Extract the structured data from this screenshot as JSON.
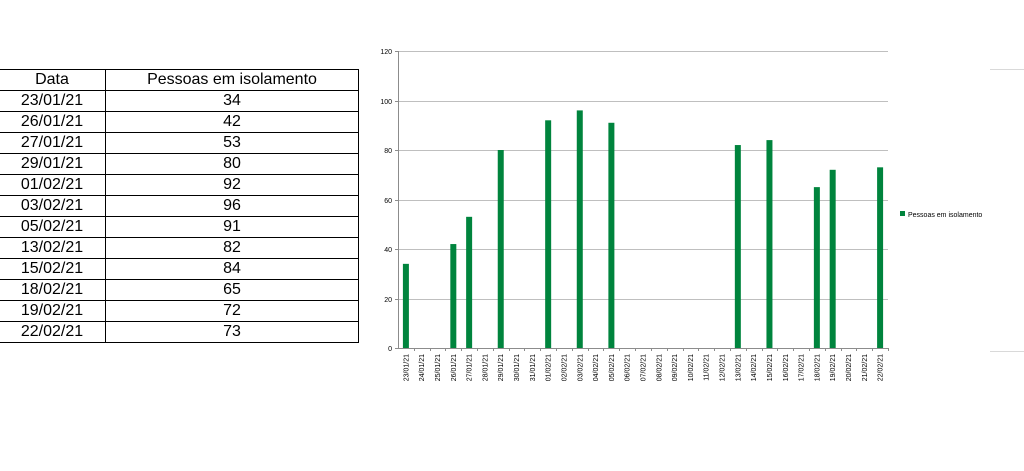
{
  "table": {
    "headers": [
      "Data",
      "Pessoas em isolamento"
    ],
    "rows": [
      [
        "23/01/21",
        "34"
      ],
      [
        "26/01/21",
        "42"
      ],
      [
        "27/01/21",
        "53"
      ],
      [
        "29/01/21",
        "80"
      ],
      [
        "01/02/21",
        "92"
      ],
      [
        "03/02/21",
        "96"
      ],
      [
        "05/02/21",
        "91"
      ],
      [
        "13/02/21",
        "82"
      ],
      [
        "15/02/21",
        "84"
      ],
      [
        "18/02/21",
        "65"
      ],
      [
        "19/02/21",
        "72"
      ],
      [
        "22/02/21",
        "73"
      ]
    ]
  },
  "chart_data": {
    "type": "bar",
    "title": "",
    "xlabel": "",
    "ylabel": "",
    "categories": [
      "23/01/21",
      "24/01/21",
      "25/01/21",
      "26/01/21",
      "27/01/21",
      "28/01/21",
      "29/01/21",
      "30/01/21",
      "31/01/21",
      "01/02/21",
      "02/02/21",
      "03/02/21",
      "04/02/21",
      "05/02/21",
      "06/02/21",
      "07/02/21",
      "08/02/21",
      "09/02/21",
      "10/02/21",
      "11/02/21",
      "12/02/21",
      "13/02/21",
      "14/02/21",
      "15/02/21",
      "16/02/21",
      "17/02/21",
      "18/02/21",
      "19/02/21",
      "20/02/21",
      "21/02/21",
      "22/02/21"
    ],
    "series": [
      {
        "name": "Pessoas em isolamento",
        "color": "#00843d",
        "values": [
          34,
          null,
          null,
          42,
          53,
          null,
          80,
          null,
          null,
          92,
          null,
          96,
          null,
          91,
          null,
          null,
          null,
          null,
          null,
          null,
          null,
          82,
          null,
          84,
          null,
          null,
          65,
          72,
          null,
          null,
          73
        ]
      }
    ],
    "ylim": [
      0,
      120
    ],
    "yticks": [
      "0",
      "20",
      "40",
      "60",
      "80",
      "100",
      "120"
    ],
    "grid": true,
    "legend_position": "right"
  }
}
